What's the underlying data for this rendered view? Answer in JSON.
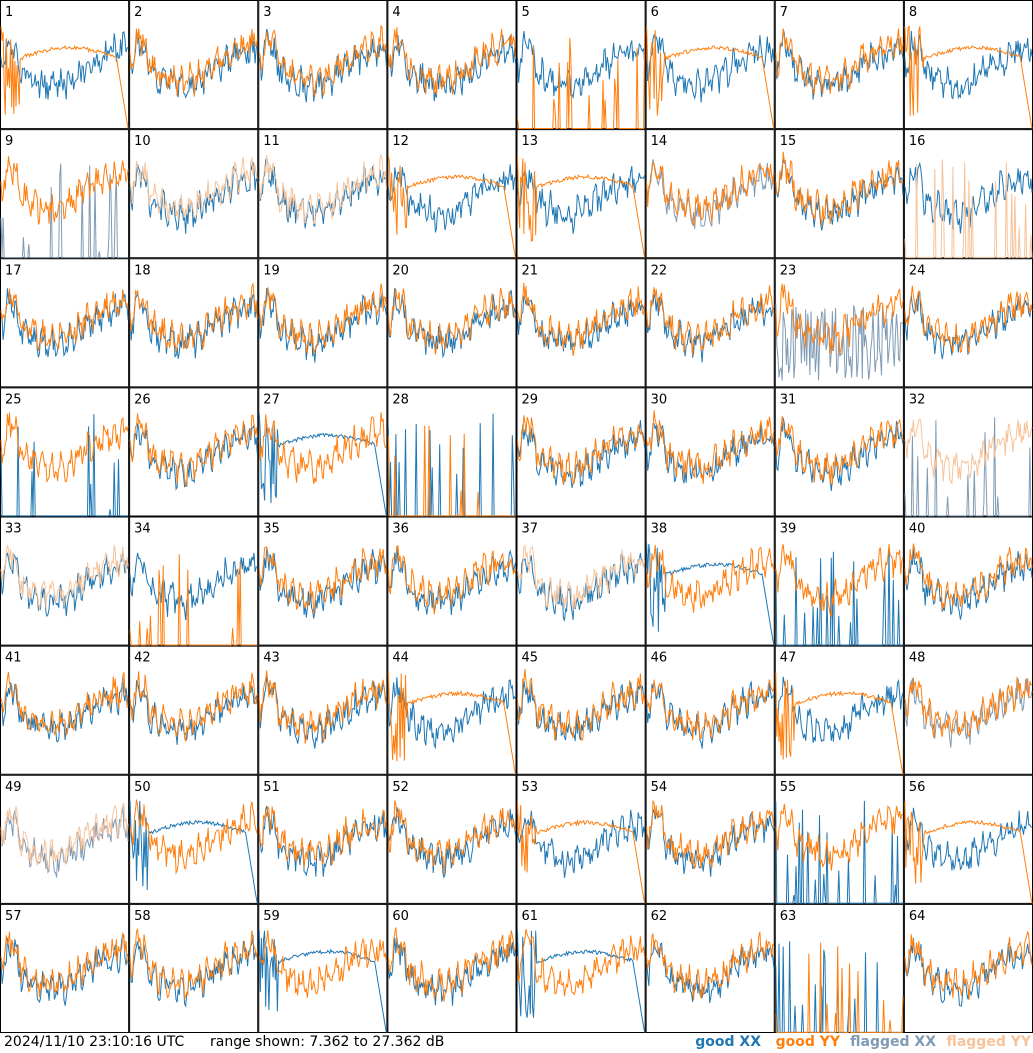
{
  "footer": {
    "timestamp": "2024/11/10 23:10:16 UTC",
    "range_text": "range shown: 7.362 to 27.362 dB"
  },
  "legend": {
    "good_xx": "good XX",
    "good_yy": "good YY",
    "flagged_xx": "flagged XX",
    "flagged_yy": "flagged YY"
  },
  "colors": {
    "good_xx": "#1f77b4",
    "good_yy": "#ff7f0e",
    "flagged_xx": "#7f9bb5",
    "flagged_yy": "#f7c39a",
    "grid_lines": "#000000",
    "background": "#ffffff"
  },
  "chart_data": {
    "type": "line",
    "layout": "8x8 small multiples",
    "y_range_db": [
      7.362,
      27.362
    ],
    "panel_count": 64,
    "panel_labels": [
      "1",
      "2",
      "3",
      "4",
      "5",
      "6",
      "7",
      "8",
      "9",
      "10",
      "11",
      "12",
      "13",
      "14",
      "15",
      "16",
      "17",
      "18",
      "19",
      "20",
      "21",
      "22",
      "23",
      "24",
      "25",
      "26",
      "27",
      "28",
      "29",
      "30",
      "31",
      "32",
      "33",
      "34",
      "35",
      "36",
      "37",
      "38",
      "39",
      "40",
      "41",
      "42",
      "43",
      "44",
      "45",
      "46",
      "47",
      "48",
      "49",
      "50",
      "51",
      "52",
      "53",
      "54",
      "55",
      "56",
      "57",
      "58",
      "59",
      "60",
      "61",
      "62",
      "63",
      "64"
    ],
    "series_names": [
      "good XX",
      "good YY",
      "flagged XX",
      "flagged YY"
    ],
    "panel_types": {
      "xx": [
        "good",
        "good",
        "good",
        "good",
        "good",
        "good",
        "good",
        "good",
        "flagged",
        "good",
        "good",
        "good",
        "good",
        "flagged",
        "good",
        "good",
        "good",
        "good",
        "good",
        "good",
        "good",
        "good",
        "flagged",
        "good",
        "good",
        "good",
        "good",
        "good",
        "good",
        "good",
        "good",
        "flagged",
        "good",
        "good",
        "good",
        "good",
        "good",
        "good",
        "good",
        "good",
        "good",
        "good",
        "good",
        "good",
        "good",
        "good",
        "good",
        "flagged",
        "flagged",
        "good",
        "good",
        "good",
        "good",
        "good",
        "good",
        "good",
        "good",
        "good",
        "good",
        "good",
        "good",
        "good",
        "good",
        "good"
      ],
      "yy": [
        "good",
        "good",
        "good",
        "good",
        "good",
        "good",
        "good",
        "good",
        "good",
        "flagged",
        "flagged",
        "good",
        "good",
        "good",
        "good",
        "flagged",
        "good",
        "good",
        "good",
        "good",
        "good",
        "good",
        "good",
        "good",
        "good",
        "good",
        "good",
        "good",
        "good",
        "good",
        "good",
        "flagged",
        "flagged",
        "good",
        "good",
        "good",
        "flagged",
        "good",
        "good",
        "good",
        "good",
        "good",
        "good",
        "good",
        "good",
        "good",
        "good",
        "good",
        "flagged",
        "good",
        "good",
        "good",
        "good",
        "good",
        "good",
        "good",
        "good",
        "good",
        "good",
        "good",
        "good",
        "good",
        "good",
        "good"
      ]
    },
    "xx_mode": [
      "n",
      "n",
      "n",
      "n",
      "n",
      "n",
      "n",
      "n",
      "s",
      "n",
      "n",
      "n",
      "n",
      "n",
      "n",
      "n",
      "n",
      "n",
      "n",
      "n",
      "n",
      "n",
      "f",
      "n",
      "s",
      "n",
      "d",
      "s",
      "n",
      "n",
      "n",
      "s",
      "n",
      "n",
      "n",
      "n",
      "n",
      "d",
      "s",
      "n",
      "n",
      "n",
      "n",
      "n",
      "n",
      "n",
      "n",
      "n",
      "n",
      "d",
      "n",
      "n",
      "n",
      "n",
      "s",
      "n",
      "n",
      "n",
      "d",
      "n",
      "d",
      "n",
      "s",
      "n"
    ],
    "yy_mode": [
      "d",
      "n",
      "n",
      "n",
      "s",
      "d",
      "n",
      "d",
      "n",
      "n",
      "n",
      "d",
      "d",
      "n",
      "n",
      "s",
      "n",
      "n",
      "n",
      "n",
      "n",
      "n",
      "n",
      "n",
      "n",
      "n",
      "n",
      "s",
      "n",
      "n",
      "n",
      "n",
      "n",
      "s",
      "n",
      "n",
      "n",
      "n",
      "n",
      "n",
      "n",
      "n",
      "n",
      "d",
      "n",
      "n",
      "d",
      "n",
      "n",
      "n",
      "n",
      "n",
      "d",
      "n",
      "n",
      "d",
      "n",
      "n",
      "n",
      "n",
      "n",
      "n",
      "s",
      "n"
    ]
  }
}
